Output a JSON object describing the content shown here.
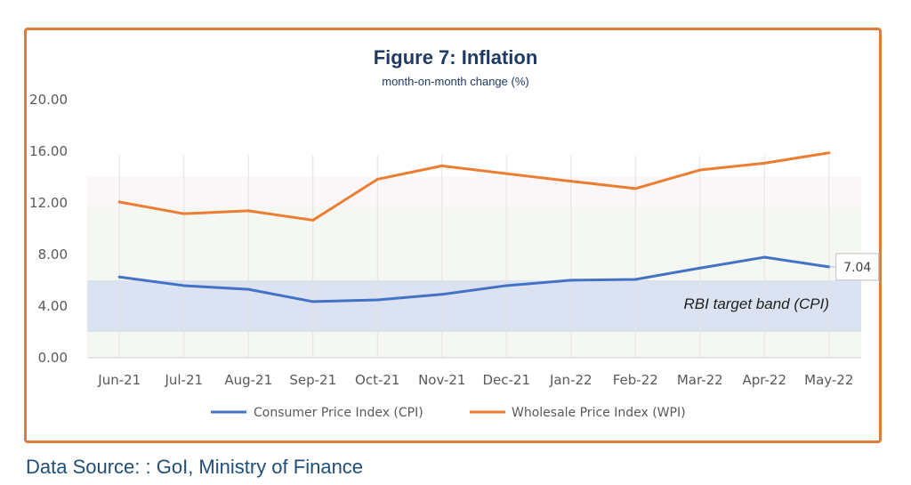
{
  "chart_data": {
    "type": "line",
    "title": "Figure 7: Inflation",
    "subtitle": "month-on-month change (%)",
    "categories": [
      "Jun-21",
      "Jul-21",
      "Aug-21",
      "Sep-21",
      "Oct-21",
      "Nov-21",
      "Dec-21",
      "Jan-22",
      "Feb-22",
      "Mar-22",
      "Apr-22",
      "May-22"
    ],
    "yticks": [
      "0.00",
      "4.00",
      "8.00",
      "12.00",
      "16.00",
      "20.00"
    ],
    "ylim": [
      0,
      20
    ],
    "series": [
      {
        "name": "Consumer Price Index (CPI)",
        "color": "#4472c4",
        "values": [
          6.26,
          5.59,
          5.3,
          4.35,
          4.48,
          4.91,
          5.59,
          6.01,
          6.07,
          6.95,
          7.79,
          7.04
        ]
      },
      {
        "name": "Wholesale Price Index (WPI)",
        "color": "#ed7d31",
        "values": [
          12.07,
          11.16,
          11.39,
          10.66,
          13.83,
          14.87,
          14.27,
          13.68,
          13.11,
          14.55,
          15.08,
          15.88
        ]
      }
    ],
    "target_band": {
      "label": "RBI target band (CPI)",
      "from": 2,
      "to": 6,
      "color": "#d9e1f2"
    },
    "callout": {
      "label": "7.04",
      "series": 0,
      "index": 11
    },
    "legend_position": "bottom",
    "grid": {
      "horizontal": false,
      "vertical": true
    }
  },
  "source": "Data Source: : GoI, Ministry of Finance",
  "colors": {
    "frame": "#e07b39",
    "title": "#1f3b63",
    "source": "#1f4e79"
  }
}
